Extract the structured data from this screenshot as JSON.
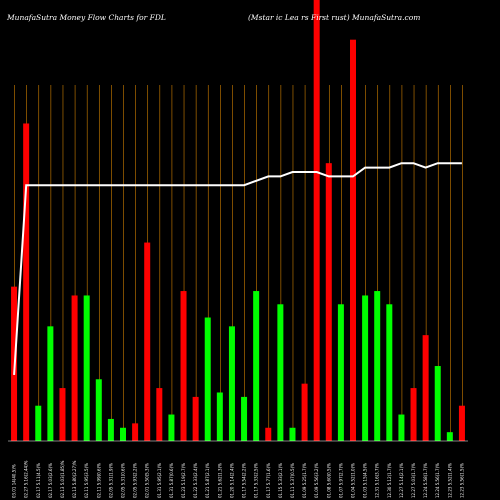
{
  "chart_data": {
    "type": "bar",
    "title_left": "MunafaSutra  Money Flow  Charts for FDL",
    "title_right": "(Mstar      ic    Lea   rs First    rust) MunafaSutra.com",
    "colors": {
      "background": "#000000",
      "up": "#00ff00",
      "down": "#ff0000",
      "grid": "#d08000",
      "line": "#ffffff",
      "text": "#ffffff"
    },
    "grid": true,
    "ylim": [
      0,
      100
    ],
    "series": [
      {
        "values": [
          35,
          72,
          8,
          26,
          12,
          33,
          33,
          14,
          5,
          3,
          4,
          45,
          12,
          6,
          34,
          10,
          28,
          11,
          26,
          10,
          34,
          3,
          31,
          3,
          13,
          100,
          63,
          31,
          91,
          33,
          34,
          31,
          6,
          12,
          24,
          17,
          2,
          8
        ],
        "colors": [
          "down",
          "down",
          "up",
          "up",
          "down",
          "down",
          "up",
          "up",
          "up",
          "up",
          "down",
          "down",
          "down",
          "up",
          "down",
          "down",
          "up",
          "up",
          "up",
          "up",
          "up",
          "down",
          "up",
          "up",
          "down",
          "down",
          "down",
          "up",
          "down",
          "up",
          "up",
          "up",
          "up",
          "down",
          "down",
          "up",
          "up",
          "down"
        ]
      }
    ],
    "line": {
      "values": [
        15,
        58,
        58,
        58,
        58,
        58,
        58,
        58,
        58,
        58,
        58,
        58,
        58,
        58,
        58,
        58,
        58,
        58,
        58,
        58,
        59,
        60,
        60,
        61,
        61,
        61,
        60,
        60,
        60,
        62,
        62,
        62,
        63,
        63,
        62,
        63,
        63,
        63
      ]
    },
    "x_tick_labels": [
      "03.01 14(40,5)%",
      "02.27 5.16(2.44)%",
      "02.17 5.11(4.5)%",
      "02.17 5.03(2.6)%",
      "02.13 5.03(1.85)%",
      "02.13 5.80(2.27)%",
      "02.11 5.95(3.5)%",
      "02.11 5.99(0.6)%",
      "02.05 5.31(1.9)%",
      "02.05 5.31(0.6)%",
      "02.05 5.93(2.2)%",
      "02.01 5.50(5.3)%",
      "01.31 5.95(2.1)%",
      "01.31 5.87(0.6)%",
      "01.23 5.19(2.7)%",
      "01.22 5.33(2.4)%",
      "01.21 5.87(2.1)%",
      "01.21 5.62(1.3)%",
      "01.20 5.14(2.4)%",
      "01.17 5.54(2.2)%",
      "01.17 5.33(2.5)%",
      "01.17 5.77(1.6)%",
      "01.15 5.33(2.1)%",
      "01.11 5.37(0.5)%",
      "01.09 5.25(1.7)%",
      "01.09 5.56(3.2)%",
      "01.08 5.60(0.5)%",
      "01.07 5.97(2.7)%",
      "01.04 5.52(1.0)%",
      "01.03 5.15(4.5)%",
      "12.31 5.16(3.7)%",
      "12.30 5.12(1.7)%",
      "12.27 5.14(2.1)%",
      "12.27 5.03(1.7)%",
      "12.24 5.58(1.7)%",
      "12.24 5.56(1.7)%",
      "12.23 5.52(1.4)%",
      "12.23 5.56(1.5)%"
    ]
  }
}
